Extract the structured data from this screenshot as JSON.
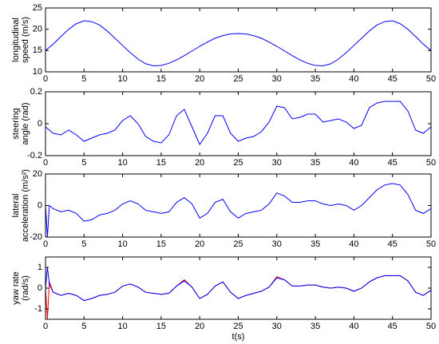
{
  "chart_data": [
    {
      "type": "line",
      "ylabel": [
        "longitudinal",
        "speed (m/s)"
      ],
      "x": [
        0,
        1,
        2,
        3,
        4,
        5,
        6,
        7,
        8,
        9,
        10,
        11,
        12,
        13,
        14,
        15,
        16,
        17,
        18,
        19,
        20,
        21,
        22,
        23,
        24,
        25,
        26,
        27,
        28,
        29,
        30,
        31,
        32,
        33,
        34,
        35,
        36,
        37,
        38,
        39,
        40,
        41,
        42,
        43,
        44,
        45,
        46,
        47,
        48,
        49,
        50
      ],
      "series": [
        {
          "color": "#0000ff",
          "values": [
            15,
            16.5,
            18.3,
            20,
            21.3,
            22,
            21.8,
            21,
            19.6,
            17.9,
            16.2,
            14.5,
            13,
            11.9,
            11.4,
            11.5,
            12,
            12.8,
            13.8,
            14.9,
            16,
            17,
            17.9,
            18.5,
            18.9,
            19,
            18.9,
            18.5,
            17.9,
            17,
            16,
            14.9,
            13.8,
            12.8,
            12,
            11.5,
            11.4,
            11.9,
            13,
            14.5,
            16.2,
            17.9,
            19.6,
            21,
            21.8,
            22,
            21.3,
            20,
            18.3,
            16.5,
            15
          ]
        }
      ],
      "xlim": [
        0,
        50
      ],
      "xticks": [
        0,
        5,
        10,
        15,
        20,
        25,
        30,
        35,
        40,
        45,
        50
      ],
      "ylim": [
        10,
        25
      ],
      "yticks": [
        10,
        15,
        20,
        25
      ]
    },
    {
      "type": "line",
      "ylabel": [
        "steering",
        "angle (rad)"
      ],
      "x": [
        0,
        1,
        2,
        3,
        4,
        5,
        6,
        7,
        8,
        9,
        10,
        11,
        12,
        13,
        14,
        15,
        16,
        17,
        18,
        19,
        20,
        21,
        22,
        23,
        24,
        25,
        26,
        27,
        28,
        29,
        30,
        31,
        32,
        33,
        34,
        35,
        36,
        37,
        38,
        39,
        40,
        41,
        42,
        43,
        44,
        45,
        46,
        47,
        48,
        49,
        50
      ],
      "series": [
        {
          "color": "#0000ff",
          "values": [
            -0.02,
            -0.06,
            -0.07,
            -0.04,
            -0.07,
            -0.11,
            -0.09,
            -0.07,
            -0.06,
            -0.04,
            0.02,
            0.05,
            0,
            -0.08,
            -0.11,
            -0.12,
            -0.07,
            0.05,
            0.09,
            -0.02,
            -0.13,
            -0.06,
            0.05,
            0.05,
            -0.06,
            -0.11,
            -0.09,
            -0.08,
            -0.05,
            0.01,
            0.11,
            0.1,
            0.03,
            0.04,
            0.06,
            0.06,
            0.01,
            0.02,
            0.03,
            0.01,
            -0.03,
            -0.01,
            0.1,
            0.13,
            0.14,
            0.14,
            0.14,
            0.08,
            -0.04,
            -0.06,
            -0.02
          ]
        }
      ],
      "xlim": [
        0,
        50
      ],
      "xticks": [
        0,
        5,
        10,
        15,
        20,
        25,
        30,
        35,
        40,
        45,
        50
      ],
      "ylim": [
        -0.2,
        0.2
      ],
      "yticks": [
        -0.2,
        0,
        0.2
      ]
    },
    {
      "type": "line",
      "ylabel": [
        "lateral",
        "acceleration (m/s²)"
      ],
      "x": [
        0,
        0.25,
        0.5,
        1,
        2,
        3,
        4,
        5,
        6,
        7,
        8,
        9,
        10,
        11,
        12,
        13,
        14,
        15,
        16,
        17,
        18,
        19,
        20,
        21,
        22,
        23,
        24,
        25,
        26,
        27,
        28,
        29,
        30,
        31,
        32,
        33,
        34,
        35,
        36,
        37,
        38,
        39,
        40,
        41,
        42,
        43,
        44,
        45,
        46,
        47,
        48,
        49,
        50
      ],
      "series": [
        {
          "color": "#0000ff",
          "values": [
            0,
            -20,
            0,
            -2,
            -4,
            -3,
            -5,
            -10,
            -9,
            -6,
            -5,
            -3,
            1,
            3,
            1,
            -3,
            -4,
            -5,
            -4,
            2,
            5,
            1,
            -8,
            -5,
            2,
            4,
            -4,
            -8,
            -5,
            -4,
            -3,
            1,
            8,
            6,
            2,
            2,
            3,
            3,
            1,
            0,
            1,
            0,
            -3,
            0,
            5,
            10,
            13,
            14,
            13,
            7,
            -3,
            -5,
            -2
          ]
        }
      ],
      "xlim": [
        0,
        50
      ],
      "xticks": [
        0,
        5,
        10,
        15,
        20,
        25,
        30,
        35,
        40,
        45,
        50
      ],
      "ylim": [
        -20,
        20
      ],
      "yticks": [
        -20,
        0,
        20
      ]
    },
    {
      "type": "line",
      "ylabel": [
        "yaw rate",
        "(rad/s)"
      ],
      "xlabel": "t(s)",
      "x": [
        0,
        0.25,
        0.5,
        1,
        2,
        3,
        4,
        5,
        6,
        7,
        8,
        9,
        10,
        11,
        12,
        13,
        14,
        15,
        16,
        17,
        18,
        19,
        20,
        21,
        22,
        23,
        24,
        25,
        26,
        27,
        28,
        29,
        30,
        31,
        32,
        33,
        34,
        35,
        36,
        37,
        38,
        39,
        40,
        41,
        42,
        43,
        44,
        45,
        46,
        47,
        48,
        49,
        50
      ],
      "series": [
        {
          "color": "#ff0000",
          "values": [
            0,
            -1.5,
            0.3,
            -0.2,
            -0.35,
            -0.25,
            -0.35,
            -0.6,
            -0.5,
            -0.35,
            -0.3,
            -0.2,
            0.1,
            0.2,
            0.05,
            -0.2,
            -0.25,
            -0.3,
            -0.25,
            0.1,
            0.4,
            0.05,
            -0.5,
            -0.3,
            0.1,
            0.3,
            -0.2,
            -0.5,
            -0.35,
            -0.25,
            -0.15,
            0.05,
            0.55,
            0.4,
            0.1,
            0.1,
            0.15,
            0.15,
            0.05,
            0,
            0.05,
            0,
            -0.15,
            0,
            0.3,
            0.5,
            0.6,
            0.6,
            0.6,
            0.35,
            -0.2,
            -0.35,
            -0.1
          ]
        },
        {
          "color": "#0000ff",
          "values": [
            0,
            1,
            0.2,
            -0.2,
            -0.35,
            -0.25,
            -0.35,
            -0.6,
            -0.5,
            -0.35,
            -0.3,
            -0.2,
            0.1,
            0.2,
            0.05,
            -0.2,
            -0.25,
            -0.3,
            -0.25,
            0.1,
            0.35,
            0.05,
            -0.5,
            -0.3,
            0.1,
            0.3,
            -0.2,
            -0.5,
            -0.35,
            -0.25,
            -0.15,
            0.05,
            0.5,
            0.4,
            0.1,
            0.1,
            0.15,
            0.15,
            0.05,
            0,
            0.05,
            0,
            -0.15,
            0,
            0.3,
            0.5,
            0.6,
            0.6,
            0.6,
            0.35,
            -0.2,
            -0.35,
            -0.1
          ]
        }
      ],
      "xlim": [
        0,
        50
      ],
      "xticks": [
        0,
        5,
        10,
        15,
        20,
        25,
        30,
        35,
        40,
        45,
        50
      ],
      "ylim": [
        -1.5,
        1.5
      ],
      "yticks": [
        -1,
        0,
        1
      ]
    }
  ]
}
